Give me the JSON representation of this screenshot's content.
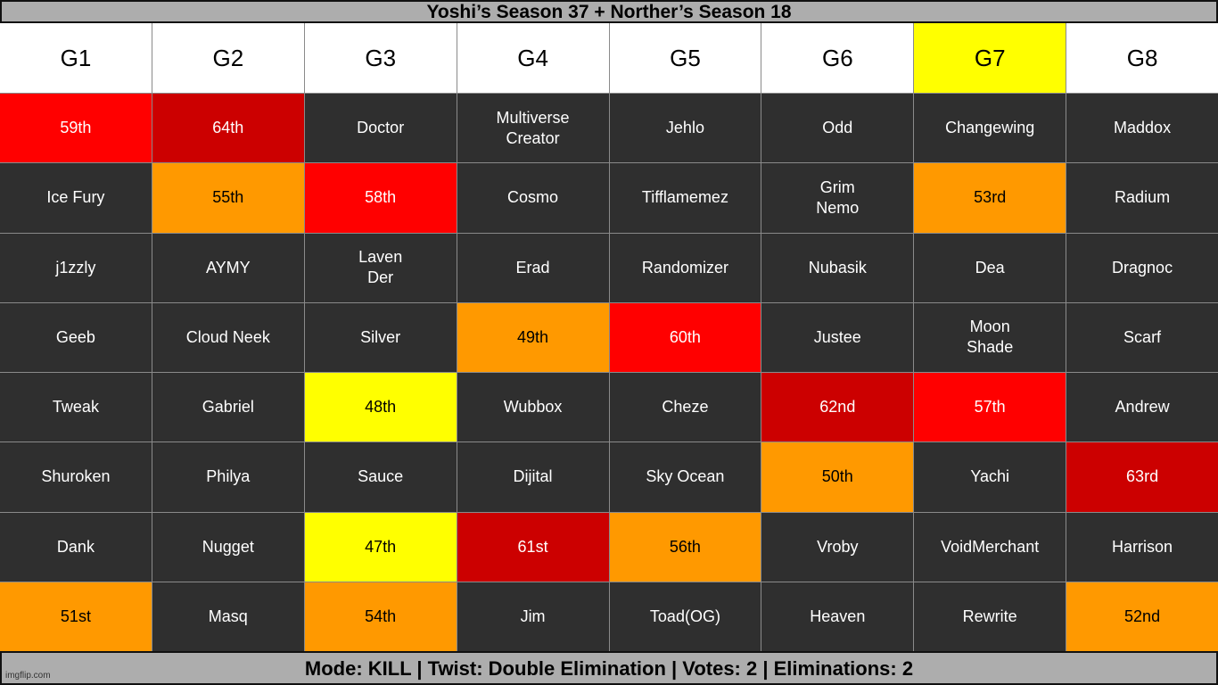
{
  "title": "Yoshi’s Season 37 + Norther’s Season 18",
  "colors": {
    "dark": "#2f2f2f",
    "red": "#ff0000",
    "darkred": "#cc0000",
    "orange": "#ff9900",
    "yellow": "#ffff00",
    "white": "#ffffff"
  },
  "headers": [
    {
      "text": "G1",
      "color": "white"
    },
    {
      "text": "G2",
      "color": "white"
    },
    {
      "text": "G3",
      "color": "white"
    },
    {
      "text": "G4",
      "color": "white"
    },
    {
      "text": "G5",
      "color": "white"
    },
    {
      "text": "G6",
      "color": "white"
    },
    {
      "text": "G7",
      "color": "yellow"
    },
    {
      "text": "G8",
      "color": "white"
    }
  ],
  "rows": [
    [
      {
        "text": "59th",
        "color": "red"
      },
      {
        "text": "64th",
        "color": "darkred"
      },
      {
        "text": "Doctor",
        "color": "dark"
      },
      {
        "text": "Multiverse\nCreator",
        "color": "dark"
      },
      {
        "text": "Jehlo",
        "color": "dark"
      },
      {
        "text": "Odd",
        "color": "dark"
      },
      {
        "text": "Changewing",
        "color": "dark"
      },
      {
        "text": "Maddox",
        "color": "dark"
      }
    ],
    [
      {
        "text": "Ice Fury",
        "color": "dark"
      },
      {
        "text": "55th",
        "color": "orange"
      },
      {
        "text": "58th",
        "color": "red"
      },
      {
        "text": "Cosmo",
        "color": "dark"
      },
      {
        "text": "Tifflamemez",
        "color": "dark"
      },
      {
        "text": "Grim\nNemo",
        "color": "dark"
      },
      {
        "text": "53rd",
        "color": "orange"
      },
      {
        "text": "Radium",
        "color": "dark"
      }
    ],
    [
      {
        "text": "j1zzly",
        "color": "dark"
      },
      {
        "text": "AYMY",
        "color": "dark"
      },
      {
        "text": "Laven\nDer",
        "color": "dark"
      },
      {
        "text": "Erad",
        "color": "dark"
      },
      {
        "text": "Randomizer",
        "color": "dark"
      },
      {
        "text": "Nubasik",
        "color": "dark"
      },
      {
        "text": "Dea",
        "color": "dark"
      },
      {
        "text": "Dragnoc",
        "color": "dark"
      }
    ],
    [
      {
        "text": "Geeb",
        "color": "dark"
      },
      {
        "text": "Cloud Neek",
        "color": "dark"
      },
      {
        "text": "Silver",
        "color": "dark"
      },
      {
        "text": "49th",
        "color": "orange"
      },
      {
        "text": "60th",
        "color": "red"
      },
      {
        "text": "Justee",
        "color": "dark"
      },
      {
        "text": "Moon\nShade",
        "color": "dark"
      },
      {
        "text": "Scarf",
        "color": "dark"
      }
    ],
    [
      {
        "text": "Tweak",
        "color": "dark"
      },
      {
        "text": "Gabriel",
        "color": "dark"
      },
      {
        "text": "48th",
        "color": "yellow"
      },
      {
        "text": "Wubbox",
        "color": "dark"
      },
      {
        "text": "Cheze",
        "color": "dark"
      },
      {
        "text": "62nd",
        "color": "darkred"
      },
      {
        "text": "57th",
        "color": "red"
      },
      {
        "text": "Andrew",
        "color": "dark"
      }
    ],
    [
      {
        "text": "Shuroken",
        "color": "dark"
      },
      {
        "text": "Philya",
        "color": "dark"
      },
      {
        "text": "Sauce",
        "color": "dark"
      },
      {
        "text": "Dijital",
        "color": "dark"
      },
      {
        "text": "Sky Ocean",
        "color": "dark"
      },
      {
        "text": "50th",
        "color": "orange"
      },
      {
        "text": "Yachi",
        "color": "dark"
      },
      {
        "text": "63rd",
        "color": "darkred"
      }
    ],
    [
      {
        "text": "Dank",
        "color": "dark"
      },
      {
        "text": "Nugget",
        "color": "dark"
      },
      {
        "text": "47th",
        "color": "yellow"
      },
      {
        "text": "61st",
        "color": "darkred"
      },
      {
        "text": "56th",
        "color": "orange"
      },
      {
        "text": "Vroby",
        "color": "dark"
      },
      {
        "text": "VoidMerchant",
        "color": "dark"
      },
      {
        "text": "Harrison",
        "color": "dark"
      }
    ],
    [
      {
        "text": "51st",
        "color": "orange"
      },
      {
        "text": "Masq",
        "color": "dark"
      },
      {
        "text": "54th",
        "color": "orange"
      },
      {
        "text": "Jim",
        "color": "dark"
      },
      {
        "text": "Toad(OG)",
        "color": "dark"
      },
      {
        "text": "Heaven",
        "color": "dark"
      },
      {
        "text": "Rewrite",
        "color": "dark"
      },
      {
        "text": "52nd",
        "color": "orange"
      }
    ]
  ],
  "footer": "Mode: KILL | Twist: Double Elimination | Votes: 2 | Eliminations: 2",
  "watermark": "imgflip.com"
}
